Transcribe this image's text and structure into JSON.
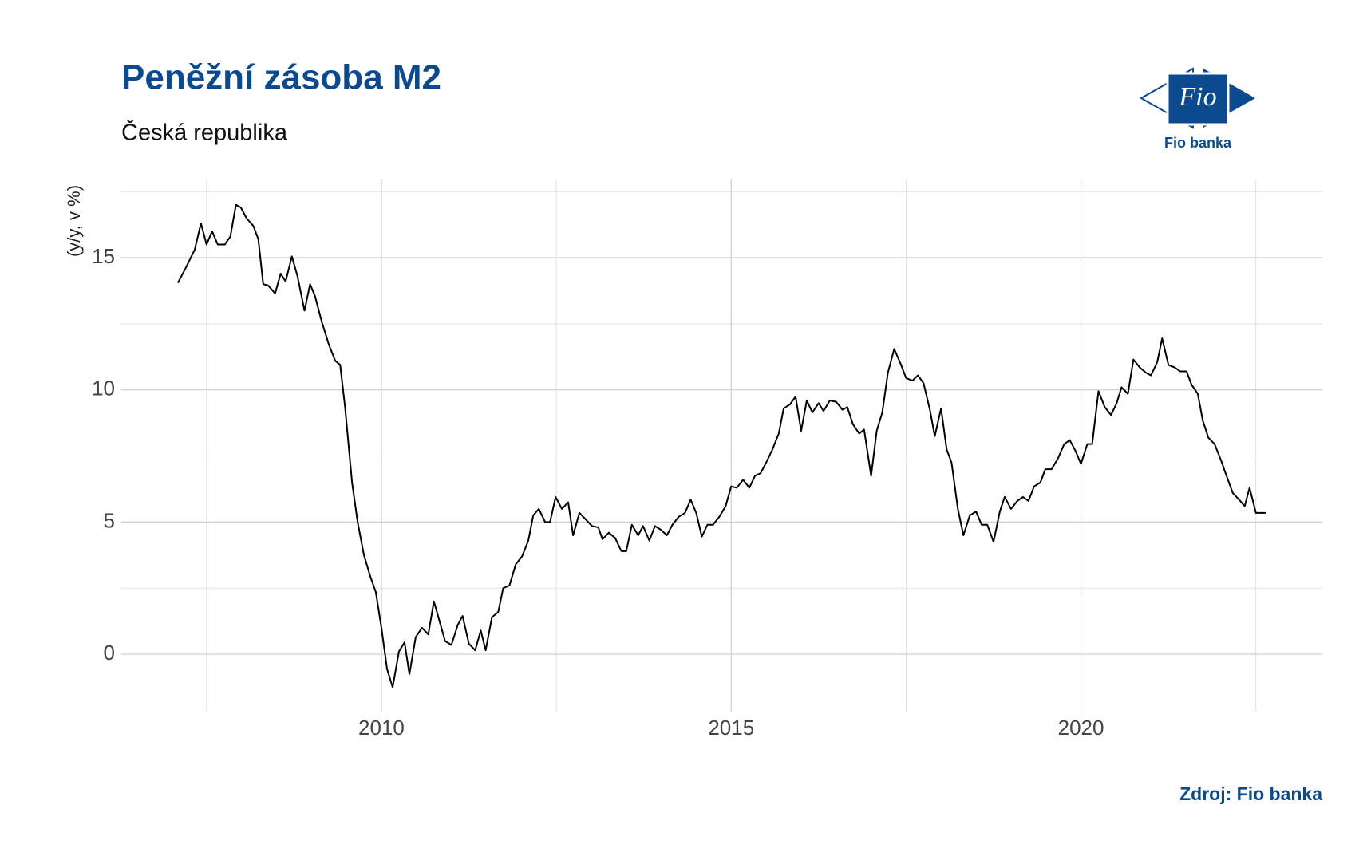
{
  "chart_data": {
    "type": "line",
    "title": "Peněžní zásoba M2",
    "subtitle": "Česká republika",
    "ylabel": "(y/y, v %)",
    "source": "Zdroj: Fio banka",
    "logo_text": "Fio",
    "logo_caption": "Fio banka",
    "color": "#000000",
    "grid": true,
    "xlim": [
      2006.27,
      2023.45
    ],
    "xticks": [
      2010,
      2015,
      2020
    ],
    "minor_xgrid": [
      2007.5,
      2012.5,
      2017.5,
      2022.5
    ],
    "ylim": [
      -2.17,
      17.96
    ],
    "yticks": [
      0,
      5,
      10,
      15
    ],
    "minor_ygrid": [
      2.5,
      7.5,
      12.5,
      17.5
    ],
    "x": [
      2007.09,
      2007.2,
      2007.33,
      2007.42,
      2007.5,
      2007.58,
      2007.66,
      2007.76,
      2007.84,
      2007.92,
      2007.99,
      2008.07,
      2008.17,
      2008.24,
      2008.31,
      2008.38,
      2008.48,
      2008.56,
      2008.63,
      2008.72,
      2008.8,
      2008.9,
      2008.98,
      2009.05,
      2009.15,
      2009.25,
      2009.34,
      2009.41,
      2009.48,
      2009.58,
      2009.66,
      2009.75,
      2009.84,
      2009.92,
      2010.0,
      2010.08,
      2010.16,
      2010.25,
      2010.33,
      2010.4,
      2010.49,
      2010.58,
      2010.67,
      2010.75,
      2010.82,
      2010.91,
      2011.0,
      2011.09,
      2011.16,
      2011.25,
      2011.34,
      2011.42,
      2011.49,
      2011.58,
      2011.67,
      2011.74,
      2011.83,
      2011.92,
      2012.01,
      2012.1,
      2012.17,
      2012.25,
      2012.34,
      2012.41,
      2012.49,
      2012.58,
      2012.67,
      2012.74,
      2012.83,
      2012.92,
      2013.01,
      2013.1,
      2013.16,
      2013.25,
      2013.34,
      2013.43,
      2013.5,
      2013.58,
      2013.67,
      2013.74,
      2013.83,
      2013.91,
      2014.0,
      2014.08,
      2014.16,
      2014.25,
      2014.34,
      2014.42,
      2014.5,
      2014.58,
      2014.66,
      2014.74,
      2014.83,
      2014.92,
      2015.0,
      2015.08,
      2015.17,
      2015.26,
      2015.34,
      2015.42,
      2015.5,
      2015.59,
      2015.68,
      2015.75,
      2015.84,
      2015.92,
      2016.0,
      2016.08,
      2016.16,
      2016.25,
      2016.32,
      2016.41,
      2016.5,
      2016.59,
      2016.66,
      2016.74,
      2016.83,
      2016.9,
      2017.0,
      2017.08,
      2017.16,
      2017.24,
      2017.33,
      2017.42,
      2017.5,
      2017.59,
      2017.67,
      2017.75,
      2017.84,
      2017.91,
      2018.0,
      2018.08,
      2018.15,
      2018.24,
      2018.32,
      2018.41,
      2018.5,
      2018.58,
      2018.66,
      2018.75,
      2018.84,
      2018.91,
      2019.0,
      2019.09,
      2019.17,
      2019.25,
      2019.33,
      2019.42,
      2019.49,
      2019.58,
      2019.67,
      2019.76,
      2019.84,
      2019.92,
      2020.0,
      2020.09,
      2020.16,
      2020.25,
      2020.34,
      2020.43,
      2020.51,
      2020.58,
      2020.67,
      2020.75,
      2020.84,
      2020.93,
      2021.0,
      2021.09,
      2021.16,
      2021.25,
      2021.34,
      2021.42,
      2021.51,
      2021.58,
      2021.67,
      2021.74,
      2021.82,
      2021.91,
      2022.0,
      2022.08,
      2022.17,
      2022.26,
      2022.34,
      2022.41,
      2022.5,
      2022.65
    ],
    "values": [
      14.05,
      14.6,
      15.3,
      16.3,
      15.5,
      16.0,
      15.5,
      15.5,
      15.8,
      17.0,
      16.9,
      16.5,
      16.2,
      15.7,
      14.0,
      13.95,
      13.65,
      14.4,
      14.1,
      15.05,
      14.3,
      13.0,
      14.0,
      13.55,
      12.55,
      11.7,
      11.1,
      10.95,
      9.35,
      6.5,
      5.0,
      3.75,
      2.95,
      2.35,
      1.0,
      -0.55,
      -1.25,
      0.1,
      0.45,
      -0.75,
      0.65,
      1.0,
      0.75,
      2.0,
      1.35,
      0.5,
      0.35,
      1.1,
      1.45,
      0.4,
      0.15,
      0.9,
      0.15,
      1.4,
      1.6,
      2.5,
      2.6,
      3.4,
      3.7,
      4.3,
      5.25,
      5.5,
      5.0,
      5.0,
      5.95,
      5.5,
      5.75,
      4.5,
      5.35,
      5.1,
      4.85,
      4.8,
      4.35,
      4.6,
      4.4,
      3.9,
      3.9,
      4.9,
      4.5,
      4.85,
      4.3,
      4.85,
      4.7,
      4.5,
      4.9,
      5.2,
      5.35,
      5.85,
      5.35,
      4.45,
      4.9,
      4.9,
      5.2,
      5.6,
      6.35,
      6.3,
      6.6,
      6.3,
      6.75,
      6.85,
      7.25,
      7.75,
      8.35,
      9.3,
      9.45,
      9.75,
      8.45,
      9.6,
      9.15,
      9.5,
      9.2,
      9.6,
      9.55,
      9.25,
      9.35,
      8.7,
      8.35,
      8.5,
      6.75,
      8.45,
      9.15,
      10.65,
      11.55,
      11.0,
      10.45,
      10.35,
      10.55,
      10.25,
      9.25,
      8.25,
      9.3,
      7.75,
      7.25,
      5.5,
      4.5,
      5.25,
      5.4,
      4.9,
      4.9,
      4.25,
      5.4,
      5.95,
      5.5,
      5.8,
      5.95,
      5.8,
      6.35,
      6.5,
      7.0,
      7.0,
      7.4,
      7.95,
      8.1,
      7.7,
      7.2,
      7.95,
      7.95,
      9.95,
      9.35,
      9.05,
      9.5,
      10.1,
      9.85,
      11.15,
      10.85,
      10.65,
      10.55,
      11.05,
      11.95,
      10.95,
      10.85,
      10.7,
      10.7,
      10.2,
      9.85,
      8.85,
      8.2,
      7.95,
      7.35,
      6.75,
      6.1,
      5.85,
      5.6,
      6.3,
      5.35,
      5.35
    ]
  }
}
